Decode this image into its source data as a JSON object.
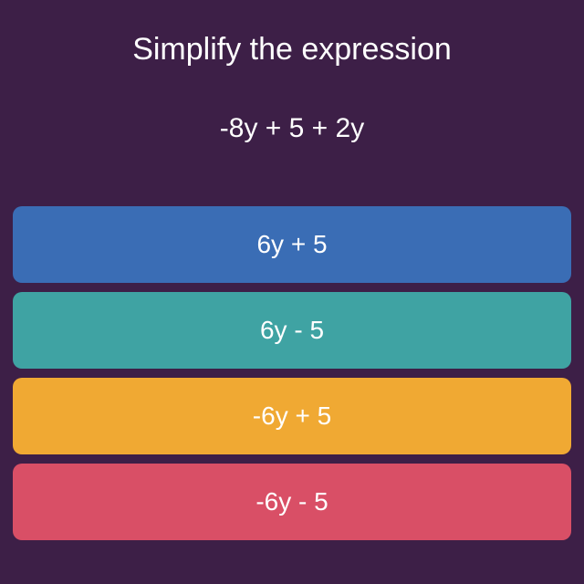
{
  "question": {
    "title": "Simplify the expression",
    "expression": "-8y + 5 + 2y",
    "title_color": "#ffffff",
    "expression_color": "#ffffff",
    "title_fontsize": 34,
    "expression_fontsize": 30
  },
  "answers": [
    {
      "label": "6y + 5",
      "background_color": "#3a6db5",
      "text_color": "#ffffff"
    },
    {
      "label": "6y - 5",
      "background_color": "#3fa3a3",
      "text_color": "#ffffff"
    },
    {
      "label": "-6y + 5",
      "background_color": "#f0a933",
      "text_color": "#ffffff"
    },
    {
      "label": "-6y - 5",
      "background_color": "#d94f66",
      "text_color": "#ffffff"
    }
  ],
  "layout": {
    "background_color": "#3d1f47",
    "button_border_radius": 10,
    "button_fontsize": 28,
    "button_padding_vertical": 26,
    "gap": 10
  }
}
